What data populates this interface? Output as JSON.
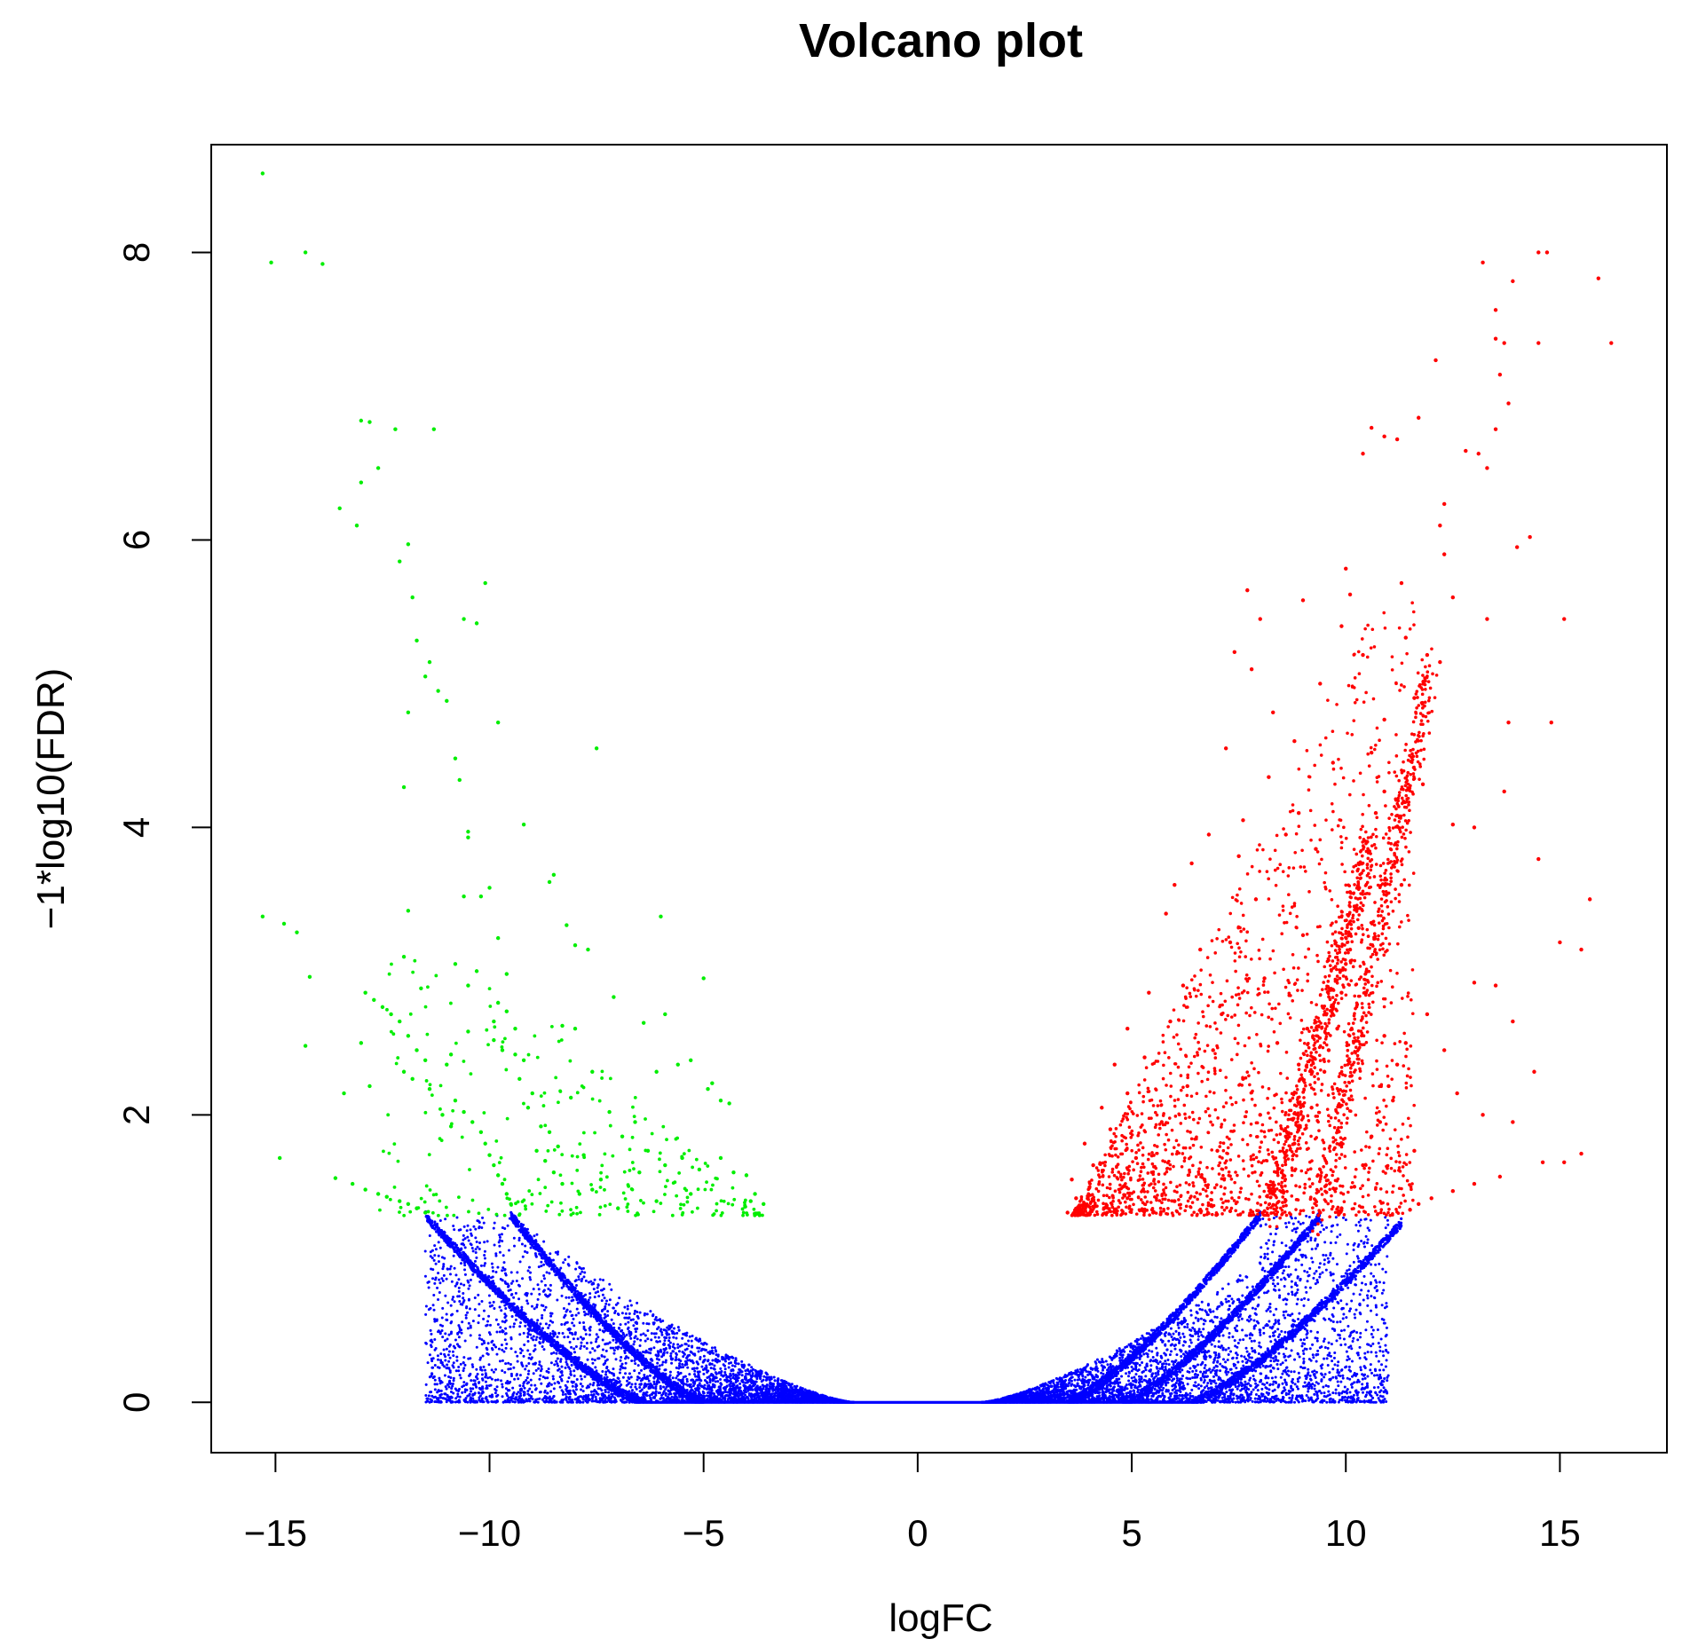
{
  "chart_data": {
    "type": "scatter",
    "title": "Volcano plot",
    "xlabel": "logFC",
    "ylabel": "−1*log10(FDR)",
    "xlim": [
      -16.5,
      17.5
    ],
    "ylim": [
      -0.35,
      8.75
    ],
    "xticks": [
      -15,
      -10,
      -5,
      0,
      5,
      10,
      15
    ],
    "xtick_labels": [
      "−15",
      "−10",
      "−5",
      "0",
      "5",
      "10",
      "15"
    ],
    "yticks": [
      0,
      2,
      4,
      6,
      8
    ],
    "ytick_labels": [
      "0",
      "2",
      "4",
      "6",
      "8"
    ],
    "grid": false,
    "legend": "none",
    "colors": {
      "down": "#00ee00",
      "not_significant": "#0000ff",
      "up": "#ff0000"
    },
    "series": [
      {
        "color": "#00ee00",
        "points": [
          [
            -15.3,
            8.55
          ],
          [
            -15.1,
            7.93
          ],
          [
            -14.3,
            8.0
          ],
          [
            -13.9,
            7.92
          ],
          [
            -13.0,
            6.83
          ],
          [
            -12.8,
            6.82
          ],
          [
            -12.2,
            6.77
          ],
          [
            -11.3,
            6.77
          ],
          [
            -12.6,
            6.5
          ],
          [
            -13.0,
            6.4
          ],
          [
            -13.5,
            6.22
          ],
          [
            -13.1,
            6.1
          ],
          [
            -11.9,
            5.97
          ],
          [
            -12.1,
            5.85
          ],
          [
            -11.8,
            5.6
          ],
          [
            -10.1,
            5.7
          ],
          [
            -10.6,
            5.45
          ],
          [
            -10.3,
            5.42
          ],
          [
            -11.7,
            5.3
          ],
          [
            -11.4,
            5.15
          ],
          [
            -11.5,
            5.05
          ],
          [
            -11.2,
            4.95
          ],
          [
            -11.0,
            4.88
          ],
          [
            -11.9,
            4.8
          ],
          [
            -9.8,
            4.73
          ],
          [
            -7.5,
            4.55
          ],
          [
            -10.8,
            4.48
          ],
          [
            -10.7,
            4.33
          ],
          [
            -12.0,
            4.28
          ],
          [
            -9.2,
            4.02
          ],
          [
            -10.5,
            3.97
          ],
          [
            -10.5,
            3.93
          ],
          [
            -8.5,
            3.67
          ],
          [
            -8.6,
            3.62
          ],
          [
            -10.0,
            3.58
          ],
          [
            -10.6,
            3.52
          ],
          [
            -10.2,
            3.52
          ],
          [
            -6.0,
            3.38
          ],
          [
            -15.3,
            3.38
          ],
          [
            -14.8,
            3.33
          ],
          [
            -11.9,
            3.42
          ],
          [
            -14.5,
            3.27
          ],
          [
            -8.2,
            3.32
          ],
          [
            -9.8,
            3.23
          ],
          [
            -8.0,
            3.18
          ],
          [
            -7.7,
            3.15
          ],
          [
            -12.0,
            3.1
          ],
          [
            -10.8,
            3.05
          ],
          [
            -10.3,
            3.0
          ],
          [
            -11.6,
            2.88
          ],
          [
            -10.5,
            2.9
          ],
          [
            -9.6,
            2.98
          ],
          [
            -14.2,
            2.96
          ],
          [
            -5.0,
            2.95
          ],
          [
            -12.9,
            2.85
          ],
          [
            -12.7,
            2.8
          ],
          [
            -12.5,
            2.75
          ],
          [
            -12.3,
            2.7
          ],
          [
            -12.1,
            2.65
          ],
          [
            -11.9,
            2.55
          ],
          [
            -9.8,
            2.78
          ],
          [
            -9.6,
            2.72
          ],
          [
            -9.9,
            2.65
          ],
          [
            -9.4,
            2.6
          ],
          [
            -8.3,
            2.62
          ],
          [
            -8.0,
            2.6
          ],
          [
            -6.4,
            2.64
          ],
          [
            -5.9,
            2.7
          ],
          [
            -7.1,
            2.82
          ],
          [
            -10.5,
            2.58
          ],
          [
            -9.9,
            2.52
          ],
          [
            -9.7,
            2.45
          ],
          [
            -11.7,
            2.45
          ],
          [
            -11.5,
            2.38
          ],
          [
            -12.0,
            2.3
          ],
          [
            -13.0,
            2.5
          ],
          [
            -14.3,
            2.48
          ],
          [
            -9.4,
            2.42
          ],
          [
            -9.2,
            2.38
          ],
          [
            -7.6,
            2.3
          ],
          [
            -6.1,
            2.3
          ],
          [
            -5.6,
            2.35
          ],
          [
            -5.3,
            2.38
          ],
          [
            -4.8,
            2.22
          ],
          [
            -4.9,
            2.18
          ],
          [
            -4.6,
            2.1
          ],
          [
            -4.4,
            2.08
          ],
          [
            -12.8,
            2.2
          ],
          [
            -13.4,
            2.15
          ],
          [
            -11.8,
            2.25
          ],
          [
            -11.4,
            2.18
          ],
          [
            -10.8,
            2.1
          ],
          [
            -10.6,
            2.02
          ],
          [
            -10.4,
            1.95
          ],
          [
            -10.2,
            1.88
          ],
          [
            -10.1,
            1.8
          ],
          [
            -10.0,
            1.72
          ],
          [
            -9.9,
            1.65
          ],
          [
            -9.8,
            1.58
          ],
          [
            -9.7,
            1.52
          ],
          [
            -9.6,
            1.45
          ],
          [
            -9.5,
            1.38
          ],
          [
            -8.8,
            1.92
          ],
          [
            -8.6,
            1.88
          ],
          [
            -8.4,
            1.78
          ],
          [
            -8.7,
            1.68
          ],
          [
            -8.5,
            1.6
          ],
          [
            -8.3,
            1.52
          ],
          [
            -7.9,
            1.45
          ],
          [
            -7.6,
            1.48
          ],
          [
            -7.2,
            2.02
          ],
          [
            -6.6,
            1.95
          ],
          [
            -6.9,
            1.85
          ],
          [
            -6.3,
            1.75
          ],
          [
            -5.9,
            1.65
          ],
          [
            -5.5,
            1.7
          ],
          [
            -5.1,
            1.62
          ],
          [
            -4.6,
            1.7
          ],
          [
            -4.3,
            1.6
          ],
          [
            -4.0,
            1.58
          ],
          [
            -3.8,
            1.45
          ],
          [
            -3.6,
            1.38
          ],
          [
            -3.9,
            1.4
          ],
          [
            -5.3,
            1.45
          ],
          [
            -6.1,
            1.4
          ],
          [
            -7.0,
            1.35
          ],
          [
            -14.9,
            1.7
          ],
          [
            -13.6,
            1.56
          ],
          [
            -13.2,
            1.52
          ],
          [
            -12.9,
            1.48
          ],
          [
            -12.6,
            1.45
          ],
          [
            -12.4,
            1.43
          ],
          [
            -12.1,
            1.4
          ],
          [
            -11.9,
            1.38
          ],
          [
            -11.7,
            1.35
          ],
          [
            -11.5,
            1.32
          ],
          [
            -9.3,
            2.25
          ],
          [
            -9.0,
            2.15
          ],
          [
            -11.1,
            2.0
          ],
          [
            -10.9,
            1.92
          ],
          [
            -11.0,
            2.35
          ],
          [
            -10.9,
            2.42
          ],
          [
            -9.1,
            2.05
          ],
          [
            -8.9,
            1.75
          ],
          [
            -7.4,
            1.55
          ],
          [
            -6.5,
            1.6
          ],
          [
            -7.8,
            1.72
          ],
          [
            -8.1,
            2.12
          ]
        ]
      },
      {
        "color": "#ff0000",
        "points": [
          [
            14.7,
            8.0
          ],
          [
            14.5,
            8.0
          ],
          [
            13.2,
            7.93
          ],
          [
            13.9,
            7.8
          ],
          [
            15.9,
            7.82
          ],
          [
            13.5,
            7.6
          ],
          [
            13.5,
            7.4
          ],
          [
            13.7,
            7.37
          ],
          [
            14.5,
            7.37
          ],
          [
            16.2,
            7.37
          ],
          [
            12.1,
            7.25
          ],
          [
            13.6,
            7.15
          ],
          [
            13.8,
            6.95
          ],
          [
            11.7,
            6.85
          ],
          [
            13.5,
            6.77
          ],
          [
            10.6,
            6.78
          ],
          [
            10.9,
            6.72
          ],
          [
            11.2,
            6.7
          ],
          [
            10.4,
            6.6
          ],
          [
            12.8,
            6.62
          ],
          [
            13.1,
            6.6
          ],
          [
            13.3,
            6.5
          ],
          [
            12.3,
            6.25
          ],
          [
            12.2,
            6.1
          ],
          [
            14.3,
            6.02
          ],
          [
            14.0,
            5.95
          ],
          [
            12.3,
            5.9
          ],
          [
            10.0,
            5.8
          ],
          [
            11.3,
            5.7
          ],
          [
            7.7,
            5.65
          ],
          [
            10.1,
            5.62
          ],
          [
            9.0,
            5.58
          ],
          [
            12.5,
            5.6
          ],
          [
            13.3,
            5.45
          ],
          [
            15.1,
            5.45
          ],
          [
            9.9,
            5.4
          ],
          [
            8.0,
            5.45
          ],
          [
            11.4,
            5.32
          ],
          [
            11.9,
            5.2
          ],
          [
            12.2,
            5.15
          ],
          [
            10.4,
            5.2
          ],
          [
            7.8,
            5.1
          ],
          [
            9.4,
            5.0
          ],
          [
            7.4,
            5.22
          ],
          [
            11.6,
            4.9
          ],
          [
            8.3,
            4.8
          ],
          [
            10.9,
            4.75
          ],
          [
            13.8,
            4.73
          ],
          [
            14.8,
            4.73
          ],
          [
            7.2,
            4.55
          ],
          [
            8.8,
            4.6
          ],
          [
            10.6,
            4.52
          ],
          [
            9.7,
            4.45
          ],
          [
            8.2,
            4.35
          ],
          [
            11.8,
            4.3
          ],
          [
            10.9,
            4.25
          ],
          [
            8.9,
            4.1
          ],
          [
            7.6,
            4.05
          ],
          [
            6.8,
            3.95
          ],
          [
            12.5,
            4.02
          ],
          [
            13.0,
            4.0
          ],
          [
            13.7,
            4.25
          ],
          [
            10.5,
            3.9
          ],
          [
            9.3,
            3.85
          ],
          [
            8.6,
            3.95
          ],
          [
            7.5,
            3.8
          ],
          [
            6.4,
            3.75
          ],
          [
            14.5,
            3.78
          ],
          [
            11.3,
            3.6
          ],
          [
            10.1,
            3.55
          ],
          [
            7.9,
            3.5
          ],
          [
            6.0,
            3.6
          ],
          [
            5.8,
            3.4
          ],
          [
            15.7,
            3.5
          ],
          [
            10.3,
            3.3
          ],
          [
            9.0,
            3.25
          ],
          [
            7.3,
            3.2
          ],
          [
            6.6,
            3.15
          ],
          [
            15.0,
            3.2
          ],
          [
            15.5,
            3.15
          ],
          [
            10.0,
            3.05
          ],
          [
            8.1,
            2.95
          ],
          [
            6.2,
            2.9
          ],
          [
            5.4,
            2.85
          ],
          [
            13.5,
            2.9
          ],
          [
            13.0,
            2.92
          ],
          [
            9.7,
            2.75
          ],
          [
            7.1,
            2.7
          ],
          [
            5.9,
            2.65
          ],
          [
            4.9,
            2.6
          ],
          [
            11.9,
            2.7
          ],
          [
            13.9,
            2.65
          ],
          [
            10.9,
            2.55
          ],
          [
            8.4,
            2.5
          ],
          [
            6.9,
            2.45
          ],
          [
            5.3,
            2.4
          ],
          [
            4.6,
            2.35
          ],
          [
            12.3,
            2.45
          ],
          [
            14.4,
            2.3
          ],
          [
            9.5,
            2.3
          ],
          [
            7.6,
            2.25
          ],
          [
            6.3,
            2.2
          ],
          [
            4.9,
            2.15
          ],
          [
            4.3,
            2.05
          ],
          [
            11.1,
            2.1
          ],
          [
            12.6,
            2.15
          ],
          [
            9.2,
            2.05
          ],
          [
            8.0,
            2.0
          ],
          [
            5.7,
            1.95
          ],
          [
            4.5,
            1.9
          ],
          [
            3.9,
            1.8
          ],
          [
            13.2,
            2.0
          ],
          [
            10.6,
            1.85
          ],
          [
            8.8,
            1.8
          ],
          [
            7.0,
            1.75
          ],
          [
            5.1,
            1.7
          ],
          [
            4.1,
            1.65
          ],
          [
            3.6,
            1.55
          ],
          [
            11.6,
            1.75
          ],
          [
            13.9,
            1.95
          ],
          [
            10.4,
            1.65
          ],
          [
            8.5,
            1.6
          ],
          [
            6.7,
            1.55
          ],
          [
            4.8,
            1.5
          ],
          [
            3.7,
            1.42
          ],
          [
            15.5,
            1.73
          ],
          [
            15.1,
            1.67
          ],
          [
            14.6,
            1.67
          ],
          [
            10.2,
            1.5
          ],
          [
            8.3,
            1.45
          ],
          [
            6.0,
            1.4
          ],
          [
            4.4,
            1.36
          ],
          [
            3.5,
            1.32
          ],
          [
            13.6,
            1.57
          ],
          [
            13.0,
            1.52
          ],
          [
            12.5,
            1.47
          ],
          [
            12.0,
            1.42
          ],
          [
            11.7,
            1.38
          ],
          [
            11.5,
            1.34
          ],
          [
            9.9,
            1.35
          ],
          [
            8.1,
            1.33
          ],
          [
            7.3,
            1.33
          ],
          [
            5.5,
            1.32
          ],
          [
            9.4,
            1.32
          ],
          [
            10.8,
            1.95
          ],
          [
            11.0,
            2.2
          ],
          [
            11.2,
            2.35
          ],
          [
            11.4,
            2.5
          ],
          [
            9.8,
            2.6
          ],
          [
            9.9,
            2.85
          ],
          [
            10.1,
            3.15
          ],
          [
            10.2,
            3.45
          ],
          [
            10.3,
            3.75
          ],
          [
            8.7,
            2.1
          ],
          [
            8.9,
            2.35
          ],
          [
            9.1,
            2.6
          ],
          [
            8.6,
            1.85
          ],
          [
            8.4,
            1.65
          ],
          [
            9.6,
            2.45
          ],
          [
            10.7,
            4.1
          ]
        ]
      },
      {
        "color": "#0000ff",
        "points": []
      }
    ],
    "notes": "The ordinary blue points fill the region from the V-shaped boundary down to 0 (|logFC| below ~1.5 at y=0). They are drawn by the script."
  }
}
